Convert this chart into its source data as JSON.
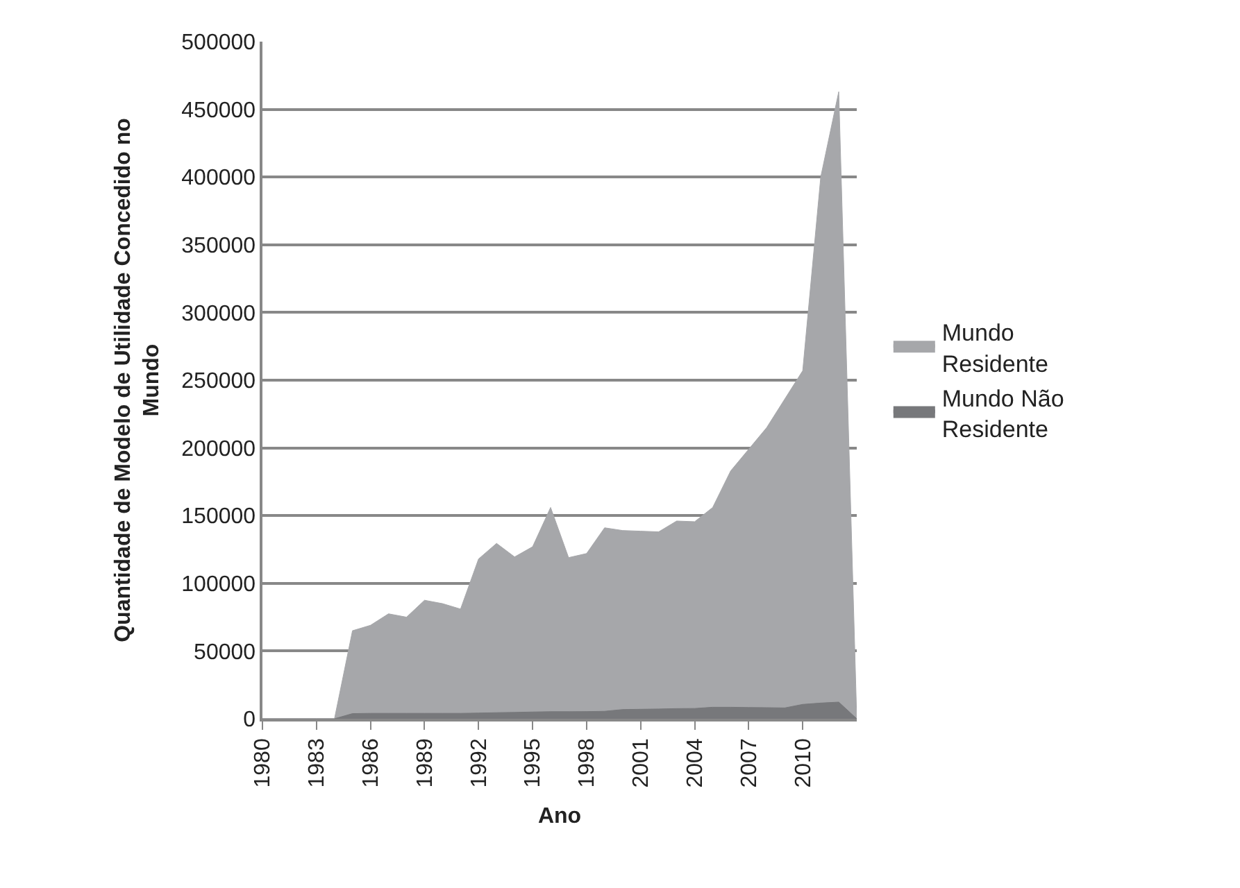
{
  "chart_data": {
    "type": "area",
    "xlabel": "Ano",
    "ylabel": "Quantidade de Modelo de Utilidade Concedido no Mundo",
    "categories": [
      "1980",
      null,
      null,
      "1983",
      null,
      null,
      "1986",
      null,
      null,
      "1989",
      null,
      null,
      "1992",
      null,
      null,
      "1995",
      null,
      null,
      "1998",
      null,
      null,
      "2001",
      null,
      null,
      "2004",
      null,
      null,
      "2007",
      null,
      null,
      "2010",
      null,
      null,
      null
    ],
    "series": [
      {
        "name": "Mundo Residente",
        "color": "#a6a7aa",
        "values": [
          0,
          0,
          0,
          0,
          0,
          65000,
          69000,
          77500,
          75000,
          87500,
          85000,
          81000,
          118000,
          129500,
          119500,
          127000,
          156000,
          119000,
          122000,
          141000,
          139000,
          138500,
          138000,
          146000,
          145500,
          156000,
          183000,
          199000,
          215000,
          236000,
          257000,
          400000,
          463000,
          0
        ]
      },
      {
        "name": "Mundo Não Residente",
        "color": "#77787b",
        "values": [
          0,
          0,
          0,
          0,
          0,
          3800,
          4000,
          4000,
          4000,
          4000,
          4000,
          4000,
          4200,
          4500,
          4700,
          5000,
          5200,
          5200,
          5300,
          5500,
          6800,
          7000,
          7200,
          7500,
          7600,
          8500,
          8500,
          8300,
          8200,
          8000,
          10600,
          11600,
          12300,
          0
        ]
      }
    ],
    "ylim": [
      0,
      500000
    ],
    "yticks": [
      0,
      50000,
      100000,
      150000,
      200000,
      250000,
      300000,
      350000,
      400000,
      450000,
      500000
    ],
    "grid": "y",
    "legend": "right"
  }
}
